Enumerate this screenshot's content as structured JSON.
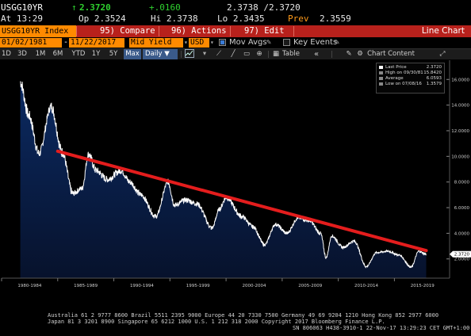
{
  "quote": {
    "ticker": "USGG10YR",
    "last": "2.3720",
    "change": "+.0160",
    "bid_ask": "2.3738 /2.3720",
    "time_label": "At 13:29",
    "open": "Op 2.3524",
    "high": "Hi 2.3738",
    "low": "Lo 2.3435",
    "prev_label": "Prev",
    "prev": "2.3559"
  },
  "command_bar": {
    "security": "USGG10YR Index",
    "compare": "95) Compare",
    "actions": "96) Actions",
    "edit": "97) Edit",
    "title": "Line Chart"
  },
  "settings": {
    "start_date": "01/02/1981",
    "end_date": "11/22/2017",
    "field": "Mid Yield",
    "currency": "USD",
    "mov_avgs": "Mov Avgs",
    "key_events": "Key Events"
  },
  "toolbar": {
    "ranges": [
      "1D",
      "3D",
      "1M",
      "6M",
      "YTD",
      "1Y",
      "5Y",
      "Max"
    ],
    "frequency": "Daily",
    "table": "Table",
    "chart_content": "Chart Content"
  },
  "legend": {
    "rows": [
      {
        "label": "Last Price",
        "value": "2.3720"
      },
      {
        "label": "High on 09/30/81",
        "value": "15.8420"
      },
      {
        "label": "Average",
        "value": "6.0593"
      },
      {
        "label": "Low on 07/08/16",
        "value": "1.3579"
      }
    ]
  },
  "colors": {
    "line": "#ffffff",
    "area": "#0e1f4a",
    "trend": "#e41d1d",
    "last_tag": "#ffffff",
    "accent_orange": "#ff8a00",
    "command_red": "#b8211c"
  },
  "chart_data": {
    "type": "line",
    "x": [
      "1981-09",
      "1982-06",
      "1983-05",
      "1984-06",
      "1985-06",
      "1986-05",
      "1987-03",
      "1987-10",
      "1988-06",
      "1989-06",
      "1990-09",
      "1991-06",
      "1992-06",
      "1993-10",
      "1994-11",
      "1995-06",
      "1996-06",
      "1997-06",
      "1998-10",
      "1999-06",
      "2000-01",
      "2001-06",
      "2002-06",
      "2003-06",
      "2004-06",
      "2005-06",
      "2006-06",
      "2007-06",
      "2008-06",
      "2008-12",
      "2009-06",
      "2010-06",
      "2011-06",
      "2012-07",
      "2013-06",
      "2014-06",
      "2015-06",
      "2016-07",
      "2017-03",
      "2017-11"
    ],
    "y": [
      15.8,
      13.2,
      10.2,
      13.9,
      10.3,
      7.1,
      7.5,
      10.2,
      8.9,
      8.2,
      8.9,
      8.0,
      7.0,
      5.3,
      8.0,
      6.2,
      6.6,
      6.3,
      4.4,
      5.9,
      6.8,
      5.3,
      4.5,
      3.1,
      4.7,
      4.0,
      5.2,
      5.0,
      4.0,
      2.1,
      3.8,
      2.9,
      3.4,
      1.4,
      2.5,
      2.6,
      2.3,
      1.36,
      2.6,
      2.37
    ],
    "trend_line": {
      "x": [
        "1985-01",
        "2017-11"
      ],
      "y": [
        10.4,
        2.65
      ]
    },
    "x_tick_labels": [
      "1980-1984",
      "1985-1989",
      "1990-1994",
      "1995-1999",
      "2000-2004",
      "2005-2009",
      "2010-2014",
      "2015-2019"
    ],
    "y_tick_labels": [
      "2.0000",
      "4.0000",
      "6.0000",
      "8.0000",
      "10.0000",
      "12.0000",
      "14.0000",
      "16.0000"
    ],
    "last_value_tag": "2.3720",
    "ylim": [
      0.5,
      17.5
    ],
    "xlim": [
      "1980-01",
      "2019-12"
    ],
    "grid": false,
    "legend": "top-right"
  },
  "footer": {
    "line1": "Australia 61 2 9777 8600 Brazil 5511 2395 9000 Europe 44 20 7330 7500 Germany 49 69 9204 1210 Hong Kong 852 2977 6000",
    "line2": "Japan 81 3 3201 8900        Singapore 65 6212 1000        U.S. 1 212 318 2000        Copyright 2017 Bloomberg Finance L.P.",
    "line3": "SN 806063 H438-3910-1 22-Nov-17 13:29:23 CET  GMT+1:00"
  }
}
